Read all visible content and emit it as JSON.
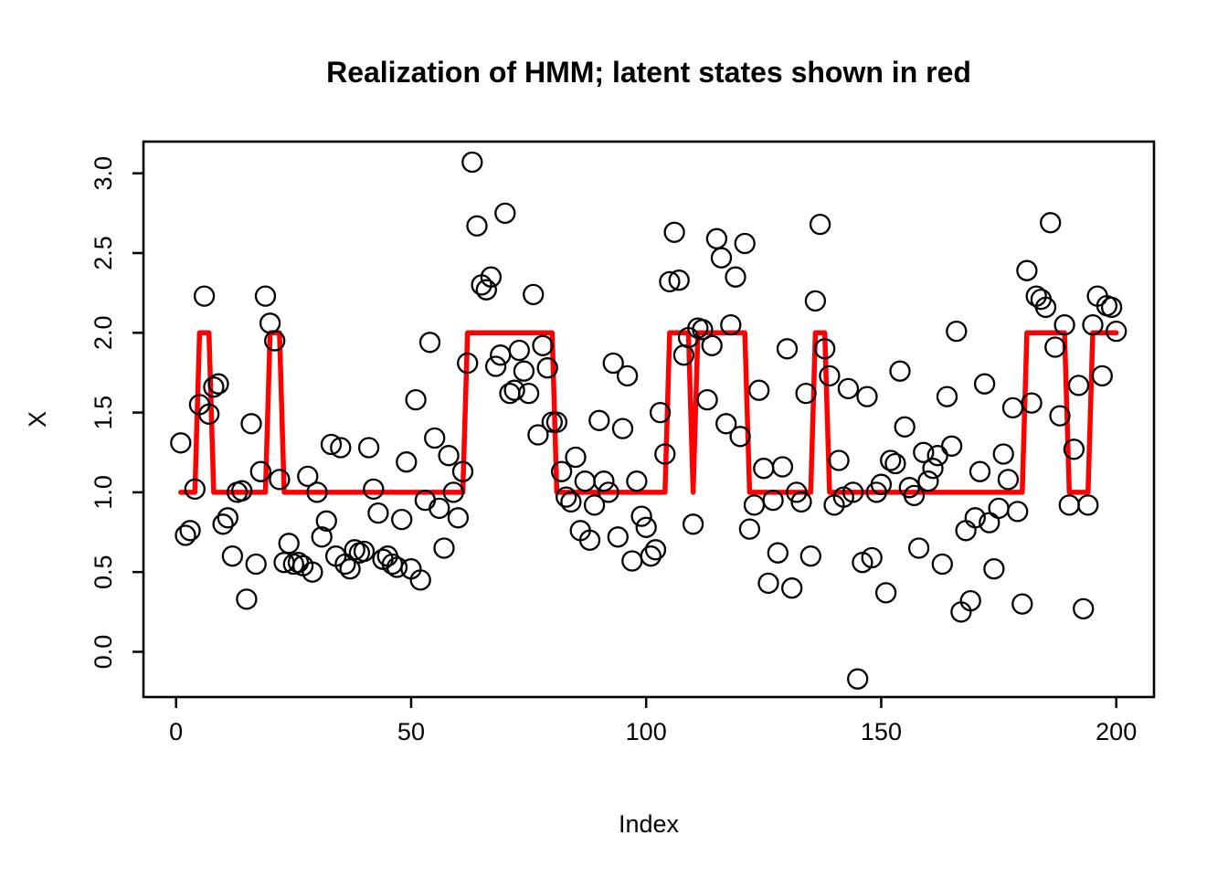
{
  "figure": {
    "title": "Realization of HMM; latent states shown in red",
    "x_axis_label": "Index",
    "y_axis_label": "X"
  },
  "colors": {
    "latent_line": "#FF0000",
    "point_stroke": "#000000",
    "axis": "#000000",
    "background": "#FFFFFF"
  },
  "chart_data": {
    "type": "scatter",
    "title": "Realization of HMM; latent states shown in red",
    "xlabel": "Index",
    "ylabel": "X",
    "xlim": [
      -7,
      208
    ],
    "ylim": [
      -0.29,
      3.22
    ],
    "x_ticks": [
      0,
      50,
      100,
      150,
      200
    ],
    "y_ticks": [
      0.0,
      0.5,
      1.0,
      1.5,
      2.0,
      2.5,
      3.0
    ],
    "y_tick_labels": [
      "0.0",
      "0.5",
      "1.0",
      "1.5",
      "2.0",
      "2.5",
      "3.0"
    ],
    "grid": false,
    "legend": "none",
    "series": [
      {
        "name": "observations",
        "type": "scatter",
        "marker": "open-circle",
        "x_start": 1,
        "y": [
          1.31,
          0.73,
          0.76,
          1.02,
          1.55,
          2.23,
          1.49,
          1.66,
          1.68,
          0.8,
          0.84,
          0.6,
          1.0,
          1.01,
          0.33,
          1.43,
          0.55,
          1.13,
          2.23,
          2.06,
          1.95,
          1.08,
          0.56,
          0.68,
          0.55,
          0.56,
          0.54,
          1.1,
          0.5,
          1.0,
          0.72,
          0.82,
          1.3,
          0.6,
          1.28,
          0.55,
          0.52,
          0.64,
          0.62,
          0.63,
          1.28,
          1.02,
          0.87,
          0.58,
          0.6,
          0.55,
          0.53,
          0.83,
          1.19,
          0.52,
          1.58,
          0.45,
          0.95,
          1.94,
          1.34,
          0.9,
          0.65,
          1.23,
          1.0,
          0.84,
          1.13,
          1.81,
          3.07,
          2.67,
          2.3,
          2.27,
          2.35,
          1.79,
          1.86,
          2.75,
          1.62,
          1.64,
          1.89,
          1.76,
          1.62,
          2.24,
          1.36,
          1.92,
          1.78,
          1.44,
          1.44,
          1.13,
          0.97,
          0.94,
          1.22,
          0.76,
          1.07,
          0.7,
          0.92,
          1.45,
          1.07,
          1.0,
          1.81,
          0.72,
          1.4,
          1.73,
          0.57,
          1.07,
          0.85,
          0.78,
          0.6,
          0.64,
          1.5,
          1.24,
          2.32,
          2.63,
          2.33,
          1.86,
          1.97,
          0.8,
          2.03,
          2.02,
          1.58,
          1.92,
          2.59,
          2.47,
          1.43,
          2.05,
          2.35,
          1.35,
          2.56,
          0.77,
          0.92,
          1.64,
          1.15,
          0.43,
          0.95,
          0.62,
          1.16,
          1.9,
          0.4,
          1.0,
          0.94,
          1.62,
          0.6,
          2.2,
          2.68,
          1.9,
          1.73,
          0.92,
          1.2,
          0.97,
          1.65,
          1.0,
          -0.17,
          0.56,
          1.6,
          0.59,
          1.0,
          1.05,
          0.37,
          1.2,
          1.18,
          1.76,
          1.41,
          1.03,
          0.98,
          0.65,
          1.25,
          1.07,
          1.15,
          1.23,
          0.55,
          1.6,
          1.29,
          2.01,
          0.25,
          0.76,
          0.32,
          0.84,
          1.13,
          1.68,
          0.81,
          0.52,
          0.9,
          1.24,
          1.08,
          1.53,
          0.88,
          0.3,
          2.39,
          1.56,
          2.23,
          2.21,
          2.16,
          2.69,
          1.91,
          1.48,
          2.05,
          0.92,
          1.27,
          1.67,
          0.27,
          0.92,
          2.05,
          2.23,
          1.73,
          2.17,
          2.16,
          2.01
        ]
      },
      {
        "name": "latent states",
        "type": "step-line",
        "color": "#FF0000",
        "state_values": [
          1,
          2
        ],
        "vertices": [
          [
            1,
            1
          ],
          [
            4,
            1
          ],
          [
            5,
            2
          ],
          [
            7,
            2
          ],
          [
            8,
            1
          ],
          [
            19,
            1
          ],
          [
            20,
            2
          ],
          [
            22,
            2
          ],
          [
            23,
            1
          ],
          [
            61,
            1
          ],
          [
            62,
            2
          ],
          [
            80,
            2
          ],
          [
            81,
            1
          ],
          [
            104,
            1
          ],
          [
            105,
            2
          ],
          [
            109,
            2
          ],
          [
            110,
            1
          ],
          [
            111,
            2
          ],
          [
            121,
            2
          ],
          [
            122,
            1
          ],
          [
            135,
            1
          ],
          [
            136,
            2
          ],
          [
            138,
            2
          ],
          [
            139,
            1
          ],
          [
            180,
            1
          ],
          [
            181,
            2
          ],
          [
            189,
            2
          ],
          [
            190,
            1
          ],
          [
            194,
            1
          ],
          [
            195,
            2
          ],
          [
            200,
            2
          ]
        ]
      }
    ]
  }
}
